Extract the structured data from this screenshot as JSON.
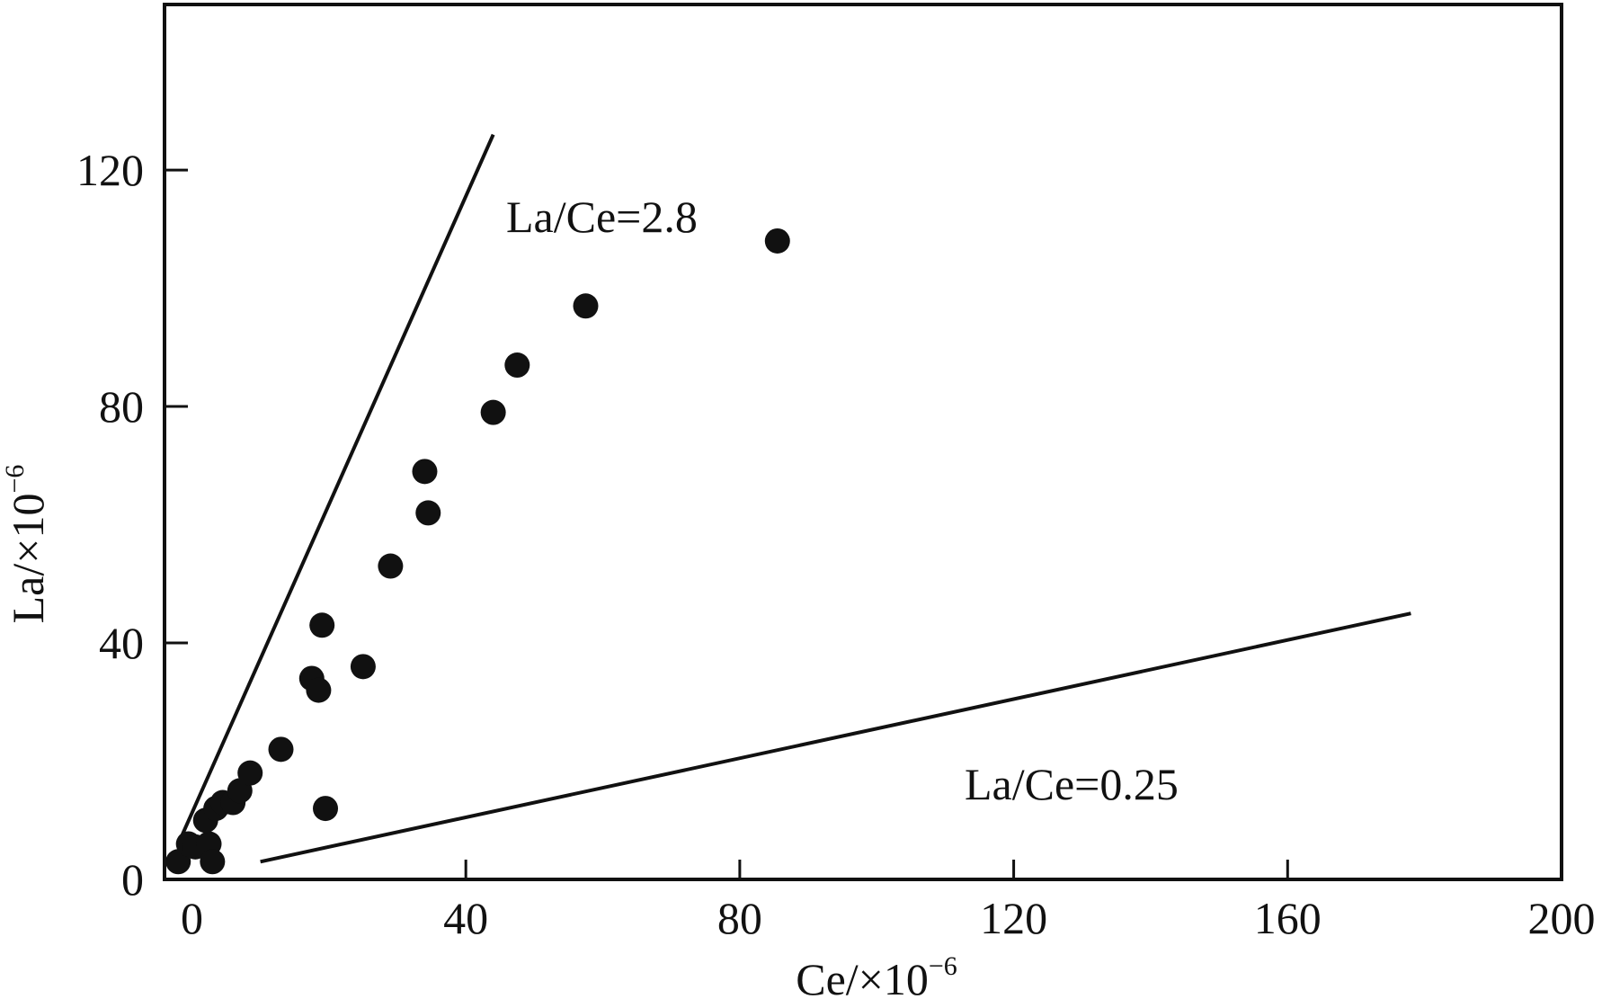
{
  "chart_data": {
    "type": "scatter",
    "title": "",
    "xlabel": "Ce/×10",
    "xlabel_superscript": "−6",
    "ylabel": "La/×10",
    "ylabel_superscript": "−6",
    "xlim": [
      -4,
      200
    ],
    "ylim": [
      0,
      148
    ],
    "x_ticks": [
      0,
      40,
      80,
      120,
      160,
      200
    ],
    "x_tick_labels": [
      "0",
      "40",
      "80",
      "120",
      "160",
      "200"
    ],
    "y_ticks": [
      0,
      40,
      80,
      120
    ],
    "y_tick_labels": [
      "0",
      "40",
      "80",
      "120"
    ],
    "grid": false,
    "points": [
      {
        "x": -2,
        "y": 3
      },
      {
        "x": -0.5,
        "y": 6
      },
      {
        "x": 0.5,
        "y": 5.5
      },
      {
        "x": 2.5,
        "y": 6
      },
      {
        "x": 3,
        "y": 3
      },
      {
        "x": 2,
        "y": 10
      },
      {
        "x": 3.5,
        "y": 12
      },
      {
        "x": 4.5,
        "y": 13
      },
      {
        "x": 6,
        "y": 13
      },
      {
        "x": 7,
        "y": 15
      },
      {
        "x": 8.5,
        "y": 18
      },
      {
        "x": 13,
        "y": 22
      },
      {
        "x": 17.5,
        "y": 34
      },
      {
        "x": 18.5,
        "y": 32
      },
      {
        "x": 19,
        "y": 43
      },
      {
        "x": 19.5,
        "y": 12
      },
      {
        "x": 25,
        "y": 36
      },
      {
        "x": 29,
        "y": 53
      },
      {
        "x": 34,
        "y": 69
      },
      {
        "x": 34.5,
        "y": 62
      },
      {
        "x": 44,
        "y": 79
      },
      {
        "x": 47.5,
        "y": 87
      },
      {
        "x": 57.5,
        "y": 97
      },
      {
        "x": 85.5,
        "y": 108
      }
    ],
    "reference_lines": [
      {
        "label": "La/Ce=2.8",
        "from": [
          -2,
          6
        ],
        "to": [
          44,
          126
        ]
      },
      {
        "label": "La/Ce=0.25",
        "from": [
          10,
          3
        ],
        "to": [
          178,
          45
        ]
      }
    ]
  }
}
